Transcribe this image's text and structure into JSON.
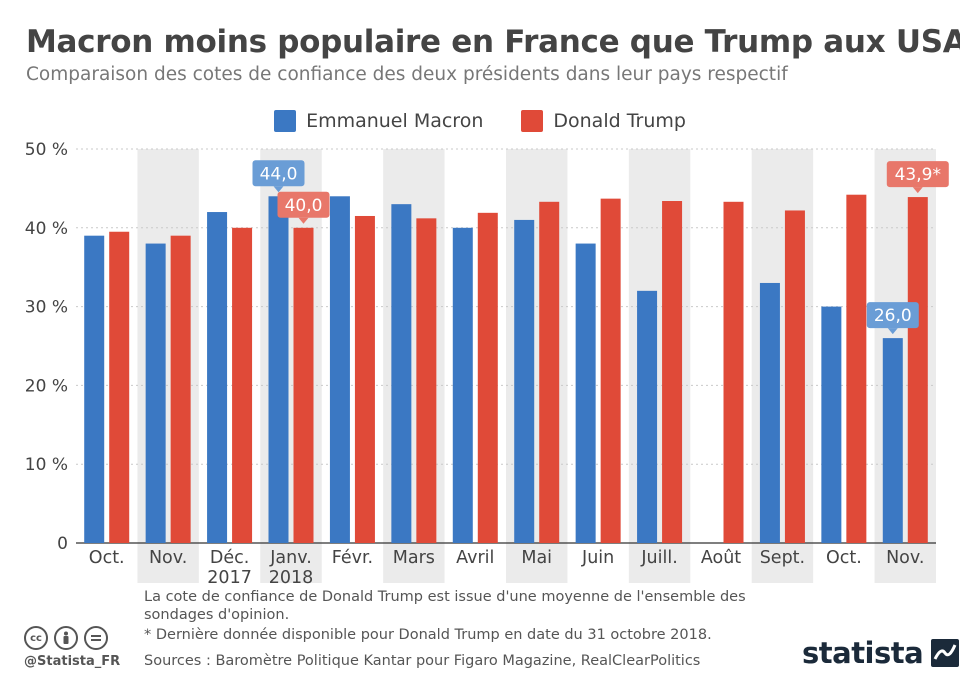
{
  "title": "Macron moins populaire en France que Trump aux USA",
  "subtitle": "Comparaison des cotes de confiance des deux présidents dans leur pays respectif",
  "colors": {
    "macron": "#3b78c3",
    "trump": "#e04a38",
    "band": "#ebebeb",
    "grid": "#c9c9c9"
  },
  "chart_data": {
    "type": "bar",
    "categories": [
      "Oct.",
      "Nov.",
      "Déc.\n2017",
      "Janv.\n2018",
      "Févr.",
      "Mars",
      "Avril",
      "Mai",
      "Juin",
      "Juill.",
      "Août",
      "Sept.",
      "Oct.",
      "Nov."
    ],
    "series": [
      {
        "name": "Emmanuel Macron",
        "color": "#3b78c3",
        "values": [
          39,
          38,
          42,
          44,
          44,
          43,
          40,
          41,
          38,
          32,
          null,
          33,
          30,
          26
        ]
      },
      {
        "name": "Donald Trump",
        "color": "#e04a38",
        "values": [
          39.5,
          39,
          40,
          40,
          41.5,
          41.2,
          41.9,
          43.3,
          43.7,
          43.4,
          43.3,
          42.2,
          44.2,
          43.9
        ]
      }
    ],
    "ylim": [
      0,
      50
    ],
    "yticks": [
      0,
      10,
      20,
      30,
      40,
      50
    ],
    "ytick_labels": [
      "0",
      "10 %",
      "20 %",
      "30 %",
      "40 %",
      "50 %"
    ],
    "grid": true,
    "legend": "top-center",
    "annotations": [
      {
        "series": 0,
        "index": 3,
        "text": "44,0"
      },
      {
        "series": 1,
        "index": 3,
        "text": "40,0"
      },
      {
        "series": 0,
        "index": 13,
        "text": "26,0"
      },
      {
        "series": 1,
        "index": 13,
        "text": "43,9*"
      }
    ]
  },
  "footnotes": {
    "note1": "La cote de confiance de Donald Trump est issue d'une moyenne de l'ensemble des sondages d'opinion.",
    "note2": "* Dernière donnée disponible pour Donald Trump en date du 31 octobre 2018.",
    "sources": "Sources : Baromètre Politique Kantar pour Figaro Magazine, RealClearPolitics"
  },
  "brand": {
    "handle": "@Statista_FR",
    "logo": "statista"
  },
  "icons": [
    "cc-icon",
    "by-icon",
    "nd-icon",
    "statista-logo-icon"
  ]
}
